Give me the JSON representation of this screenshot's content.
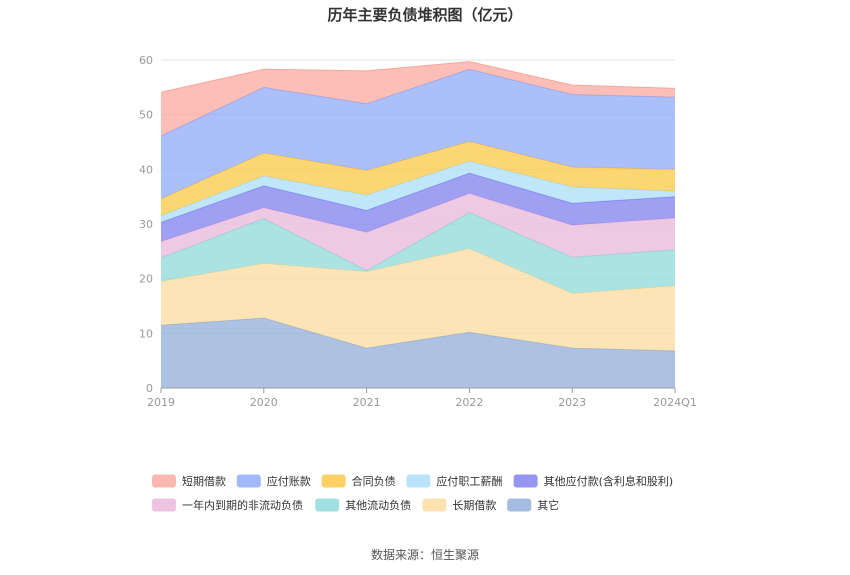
{
  "chart_data": {
    "type": "area",
    "stacked": true,
    "title": "历年主要负债堆积图（亿元）",
    "categories": [
      "2019",
      "2020",
      "2021",
      "2022",
      "2023",
      "2024Q1"
    ],
    "ylim": [
      0,
      60
    ],
    "yticks": [
      0,
      10,
      20,
      30,
      40,
      50,
      60
    ],
    "grid": true,
    "legend_position": "bottom",
    "series": [
      {
        "name": "其它",
        "color": "#8eaad8",
        "values": [
          11.5,
          12.8,
          7.3,
          10.2,
          7.3,
          6.8
        ]
      },
      {
        "name": "长期借款",
        "color": "#fcd99a",
        "values": [
          8.0,
          10.0,
          14.0,
          15.3,
          10.0,
          11.9
        ]
      },
      {
        "name": "其他流动负债",
        "color": "#8ad8d8",
        "values": [
          4.3,
          8.2,
          0.2,
          6.6,
          6.6,
          6.6
        ]
      },
      {
        "name": "一年内到期的非流动负债",
        "color": "#e8b4d8",
        "values": [
          3.0,
          2.0,
          7.0,
          3.5,
          5.9,
          5.8
        ]
      },
      {
        "name": "其他应付款(含利息和股利)",
        "color": "#7b7cef",
        "values": [
          3.5,
          4.0,
          4.0,
          3.7,
          4.0,
          3.9
        ]
      },
      {
        "name": "应付职工薪酬",
        "color": "#a8dcf6",
        "values": [
          1.2,
          1.8,
          2.8,
          2.2,
          3.0,
          1.0
        ]
      },
      {
        "name": "合同负债",
        "color": "#fcc63e",
        "values": [
          3.1,
          4.2,
          4.5,
          3.6,
          3.6,
          4.0
        ]
      },
      {
        "name": "应付账款",
        "color": "#8aa6fa",
        "values": [
          11.5,
          12.0,
          12.2,
          13.2,
          13.3,
          13.2
        ]
      },
      {
        "name": "短期借款",
        "color": "#f9a69c",
        "values": [
          8.0,
          3.3,
          6.0,
          1.4,
          1.7,
          1.6
        ]
      }
    ],
    "legend_order": [
      "短期借款",
      "应付账款",
      "合同负债",
      "应付职工薪酬",
      "其他应付款(含利息和股利)",
      "一年内到期的非流动负债",
      "其他流动负债",
      "长期借款",
      "其它"
    ]
  },
  "source": "数据来源：恒生聚源"
}
